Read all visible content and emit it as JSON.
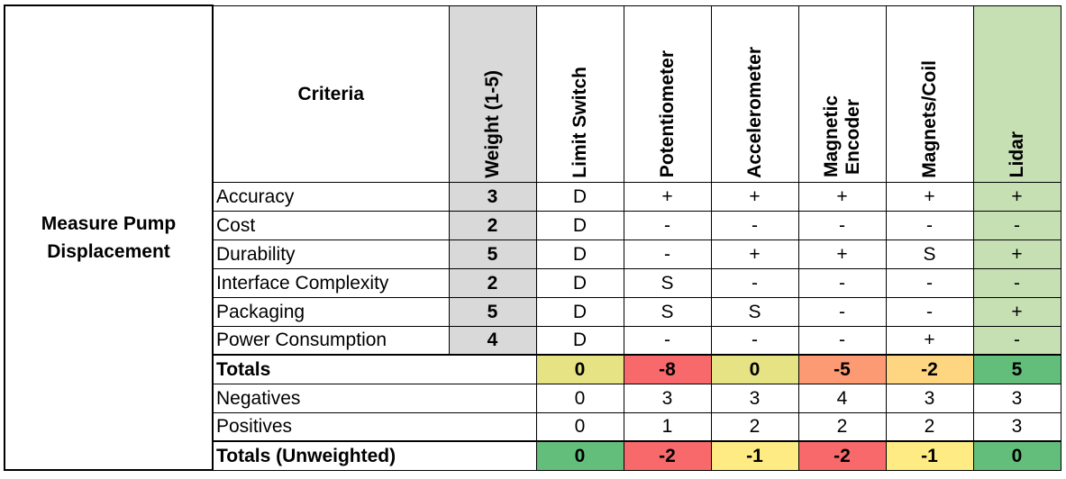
{
  "table": {
    "task": "Measure Pump Displacement",
    "criteria_header": "Criteria",
    "weight_header": "Weight (1-5)",
    "options": [
      "Limit Switch",
      "Potentiometer",
      "Accelerometer",
      "Magnetic\nEncoder",
      "Magnets/Coil",
      "Lidar"
    ],
    "rows": [
      {
        "criterion": "Accuracy",
        "weight": "3",
        "scores": [
          "D",
          "+",
          "+",
          "+",
          "+",
          "+"
        ]
      },
      {
        "criterion": "Cost",
        "weight": "2",
        "scores": [
          "D",
          "-",
          "-",
          "-",
          "-",
          "-"
        ]
      },
      {
        "criterion": "Durability",
        "weight": "5",
        "scores": [
          "D",
          "-",
          "+",
          "+",
          "S",
          "+"
        ]
      },
      {
        "criterion": "Interface Complexity",
        "weight": "2",
        "scores": [
          "D",
          "S",
          "-",
          "-",
          "-",
          "-"
        ]
      },
      {
        "criterion": "Packaging",
        "weight": "5",
        "scores": [
          "D",
          "S",
          "S",
          "-",
          "-",
          "+"
        ]
      },
      {
        "criterion": "Power Consumption",
        "weight": "4",
        "scores": [
          "D",
          "-",
          "-",
          "-",
          "+",
          "-"
        ]
      }
    ],
    "totals": {
      "label": "Totals",
      "values": [
        "0",
        "-8",
        "0",
        "-5",
        "-2",
        "5"
      ]
    },
    "negatives": {
      "label": "Negatives",
      "values": [
        "0",
        "3",
        "3",
        "4",
        "3",
        "3"
      ]
    },
    "positives": {
      "label": "Positives",
      "values": [
        "0",
        "1",
        "2",
        "2",
        "2",
        "3"
      ]
    },
    "totals_unweighted": {
      "label": "Totals (Unweighted)",
      "values": [
        "0",
        "-2",
        "-1",
        "-2",
        "-1",
        "0"
      ]
    }
  },
  "colors": {
    "weight_fill": "#d9d9d9",
    "lidar_fill": "#c6e0b4",
    "totals_fills": [
      "#e5e383",
      "#f8696b",
      "#e5e383",
      "#fb9a73",
      "#fed580",
      "#63be7b"
    ],
    "totals_unweighted_fills": [
      "#63be7b",
      "#f8696b",
      "#ffeb84",
      "#f8696b",
      "#ffeb84",
      "#63be7b"
    ]
  }
}
